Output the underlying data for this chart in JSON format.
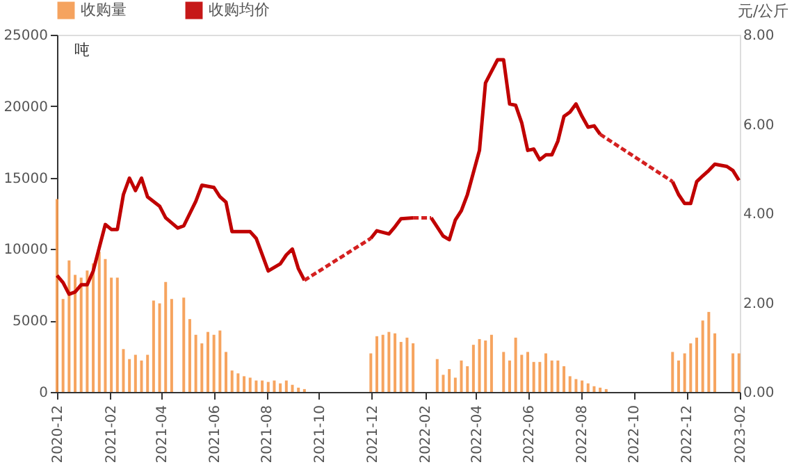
{
  "chart_data": {
    "type": "bar",
    "ylabel": "吨",
    "y2label": "元/公斤",
    "legend": "top left",
    "grid": false,
    "xlim": [
      "2020-12-01",
      "2023-02-01"
    ],
    "xticks": [
      "2020-12",
      "2021-02",
      "2021-04",
      "2021-06",
      "2021-08",
      "2021-10",
      "2021-12",
      "2022-02",
      "2022-04",
      "2022-06",
      "2022-08",
      "2022-10",
      "2022-12",
      "2023-02"
    ],
    "ylim": [
      0,
      25000
    ],
    "yticks": [
      0,
      5000,
      10000,
      15000,
      20000,
      25000
    ],
    "y2lim": [
      0,
      8
    ],
    "y2ticks": [
      {
        "value": 0,
        "label": "0.00"
      },
      {
        "value": 2,
        "label": "2.00"
      },
      {
        "value": 4,
        "label": "4.00"
      },
      {
        "value": 6,
        "label": "6.00"
      },
      {
        "value": 8,
        "label": "8.00"
      }
    ],
    "series": [
      {
        "name": "收购量",
        "type": "bar",
        "color": "#f59a4e",
        "x": [
          "2020-12-01",
          "2020-12-08",
          "2020-12-15",
          "2020-12-22",
          "2020-12-29",
          "2021-01-05",
          "2021-01-12",
          "2021-01-19",
          "2021-01-26",
          "2021-02-02",
          "2021-02-09",
          "2021-02-16",
          "2021-02-23",
          "2021-03-02",
          "2021-03-09",
          "2021-03-16",
          "2021-03-23",
          "2021-03-30",
          "2021-04-06",
          "2021-04-13",
          "2021-04-27",
          "2021-05-04",
          "2021-05-11",
          "2021-05-18",
          "2021-05-25",
          "2021-06-01",
          "2021-06-08",
          "2021-06-15",
          "2021-06-22",
          "2021-06-29",
          "2021-07-06",
          "2021-07-13",
          "2021-07-20",
          "2021-07-27",
          "2021-08-03",
          "2021-08-10",
          "2021-08-17",
          "2021-08-24",
          "2021-08-31",
          "2021-09-07",
          "2021-09-14",
          "2021-11-30",
          "2021-12-07",
          "2021-12-14",
          "2021-12-21",
          "2021-12-28",
          "2022-01-04",
          "2022-01-11",
          "2022-01-18",
          "2022-02-15",
          "2022-02-22",
          "2022-03-01",
          "2022-03-08",
          "2022-03-15",
          "2022-03-22",
          "2022-03-29",
          "2022-04-05",
          "2022-04-12",
          "2022-04-19",
          "2022-05-03",
          "2022-05-10",
          "2022-05-17",
          "2022-05-24",
          "2022-05-31",
          "2022-06-07",
          "2022-06-14",
          "2022-06-21",
          "2022-06-28",
          "2022-07-05",
          "2022-07-12",
          "2022-07-19",
          "2022-07-26",
          "2022-08-02",
          "2022-08-09",
          "2022-08-16",
          "2022-08-23",
          "2022-08-30",
          "2022-11-15",
          "2022-11-22",
          "2022-11-29",
          "2022-12-06",
          "2022-12-13",
          "2022-12-20",
          "2022-12-27",
          "2023-01-03",
          "2023-01-24",
          "2023-01-31"
        ],
        "values": [
          13500,
          6500,
          9200,
          8200,
          8000,
          8500,
          9000,
          9800,
          9300,
          8000,
          8000,
          3000,
          2300,
          2600,
          2200,
          2600,
          6400,
          6200,
          7700,
          6500,
          6600,
          5100,
          4000,
          3400,
          4200,
          4000,
          4300,
          2800,
          1500,
          1300,
          1100,
          1000,
          800,
          800,
          700,
          800,
          600,
          800,
          500,
          300,
          200,
          2700,
          3900,
          4000,
          4200,
          4100,
          3500,
          3800,
          3400,
          2300,
          1200,
          1600,
          1000,
          2200,
          1800,
          3300,
          3700,
          3600,
          4000,
          2800,
          2200,
          3800,
          2600,
          2800,
          2100,
          2100,
          2700,
          2200,
          2200,
          1800,
          1100,
          900,
          800,
          600,
          400,
          300,
          200,
          2800,
          2200,
          2700,
          3400,
          3800,
          5000,
          5600,
          4100,
          2700,
          2700
        ]
      },
      {
        "name": "收购均价",
        "type": "line",
        "axis": "y2",
        "color": "#c00000",
        "line_style": "solid",
        "x": [
          "2020-12-01",
          "2020-12-08",
          "2020-12-15",
          "2020-12-22",
          "2020-12-29",
          "2021-01-05",
          "2021-01-12",
          "2021-01-19",
          "2021-01-26",
          "2021-02-02",
          "2021-02-09",
          "2021-02-16",
          "2021-02-23",
          "2021-03-02",
          "2021-03-09",
          "2021-03-16",
          "2021-03-30",
          "2021-04-06",
          "2021-04-20",
          "2021-04-27",
          "2021-05-11",
          "2021-05-18",
          "2021-06-01",
          "2021-06-08",
          "2021-06-15",
          "2021-06-22",
          "2021-07-13",
          "2021-07-20",
          "2021-08-03",
          "2021-08-17",
          "2021-08-24",
          "2021-08-31",
          "2021-09-07",
          "2021-09-14",
          "2021-10-19",
          "2021-11-30",
          "2021-12-07",
          "2021-12-21",
          "2021-12-28",
          "2022-01-04",
          "2022-01-18",
          "2022-01-25",
          "2022-02-08",
          "2022-02-22",
          "2022-03-01",
          "2022-03-08",
          "2022-03-15",
          "2022-03-22",
          "2022-04-05",
          "2022-04-12",
          "2022-04-19",
          "2022-04-26",
          "2022-05-03",
          "2022-05-10",
          "2022-05-17",
          "2022-05-24",
          "2022-05-31",
          "2022-06-07",
          "2022-06-14",
          "2022-06-21",
          "2022-06-28",
          "2022-07-05",
          "2022-07-12",
          "2022-07-19",
          "2022-07-26",
          "2022-08-02",
          "2022-08-09",
          "2022-08-16",
          "2022-08-23",
          "2022-10-04",
          "2022-11-15",
          "2022-11-22",
          "2022-11-29",
          "2022-12-06",
          "2022-12-13",
          "2022-12-20",
          "2022-12-27",
          "2023-01-03",
          "2023-01-17",
          "2023-01-24",
          "2023-01-31"
        ],
        "values": [
          2.61,
          2.45,
          2.19,
          2.24,
          2.4,
          2.4,
          2.71,
          3.23,
          3.75,
          3.64,
          3.64,
          4.42,
          4.79,
          4.51,
          4.79,
          4.37,
          4.16,
          3.9,
          3.67,
          3.72,
          4.27,
          4.63,
          4.58,
          4.37,
          4.25,
          3.59,
          3.59,
          3.44,
          2.71,
          2.87,
          3.07,
          3.2,
          2.76,
          2.5,
          null,
          3.44,
          3.61,
          3.54,
          3.7,
          3.88,
          3.9,
          null,
          3.9,
          3.49,
          3.41,
          3.85,
          4.06,
          4.42,
          5.41,
          6.92,
          7.18,
          7.44,
          7.44,
          6.45,
          6.42,
          6.03,
          5.41,
          5.44,
          5.2,
          5.31,
          5.31,
          5.62,
          6.17,
          6.27,
          6.45,
          6.17,
          5.93,
          5.96,
          5.77,
          null,
          4.71,
          4.42,
          4.22,
          4.22,
          4.71,
          4.84,
          4.96,
          5.1,
          5.05,
          4.96,
          4.74
        ]
      },
      {
        "type": "line",
        "axis": "y2",
        "color": "#d42020",
        "line_style": "dotted",
        "x": [
          "2021-09-14",
          "2021-11-30",
          "2021-12-21",
          "2022-01-18",
          "2022-02-08",
          "2022-05-10",
          "2022-08-23",
          "2022-11-15"
        ],
        "values": [
          2.5,
          3.44,
          null,
          3.9,
          3.9,
          null,
          5.77,
          4.71
        ]
      }
    ]
  }
}
